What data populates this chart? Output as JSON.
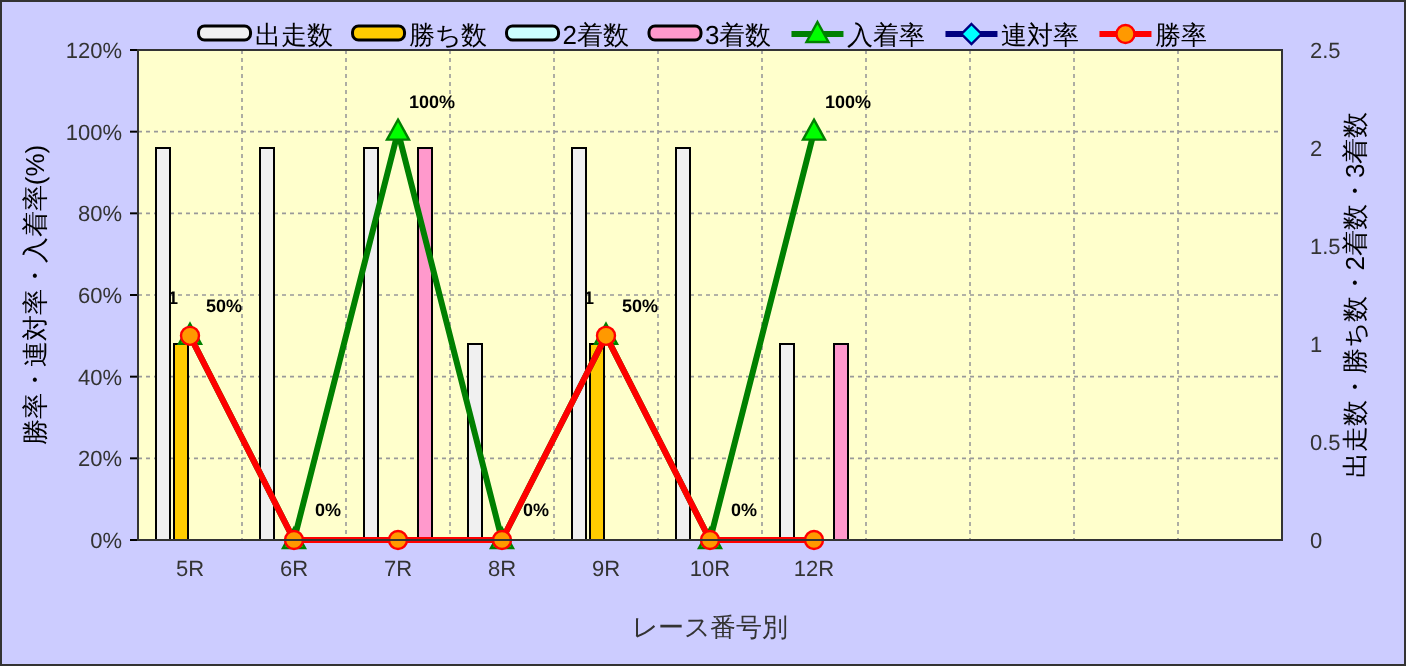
{
  "chart_data": {
    "type": "bar",
    "xlabel": "レース番号別",
    "ylabel": "勝率・連対率・入着率(%)",
    "y2label": "出走数・勝ち数・2着数・3着数",
    "categories": [
      "5R",
      "6R",
      "7R",
      "8R",
      "9R",
      "10R",
      "12R",
      null,
      null,
      null,
      null
    ],
    "series": [
      {
        "name": "出走数",
        "axis": "y2",
        "color": "#f0f0f0",
        "values": [
          2,
          2,
          2,
          1,
          2,
          2,
          1,
          null,
          null,
          null,
          null
        ]
      },
      {
        "name": "勝ち数",
        "axis": "y2",
        "color": "#ffcc00",
        "values": [
          1,
          0,
          0,
          0,
          1,
          0,
          0,
          null,
          null,
          null,
          null
        ],
        "value_labels": [
          "1",
          null,
          null,
          null,
          "1",
          null,
          null,
          null,
          null,
          null,
          null
        ]
      },
      {
        "name": "2着数",
        "axis": "y2",
        "color": "#ccffff",
        "values": [
          0,
          0,
          0,
          0,
          0,
          0,
          0,
          null,
          null,
          null,
          null
        ]
      },
      {
        "name": "3着数",
        "axis": "y2",
        "color": "#ff99cc",
        "values": [
          0,
          0,
          2,
          0,
          0,
          0,
          1,
          null,
          null,
          null,
          null
        ]
      },
      {
        "name": "入着率",
        "type": "line",
        "color": "#008000",
        "marker": "triangle",
        "values": [
          50,
          0,
          100,
          0,
          50,
          0,
          100,
          null,
          null,
          null,
          null
        ],
        "value_labels": [
          "50%",
          "0%",
          "100%",
          "0%",
          "50%",
          "0%",
          "100%",
          null,
          null,
          null,
          null
        ]
      },
      {
        "name": "連対率",
        "type": "line",
        "color": "#000080",
        "marker": "diamond",
        "values": [
          null,
          null,
          null,
          null,
          null,
          null,
          null,
          null,
          null,
          null,
          null
        ]
      },
      {
        "name": "勝率",
        "type": "line",
        "color": "#ff0000",
        "marker": "circle",
        "values": [
          50,
          0,
          0,
          0,
          50,
          0,
          0,
          null,
          null,
          null,
          null
        ]
      }
    ],
    "ylim": [
      0,
      120
    ],
    "yticks": [
      {
        "value": 0,
        "label": "0%"
      },
      {
        "value": 20,
        "label": "20%"
      },
      {
        "value": 40,
        "label": "40%"
      },
      {
        "value": 60,
        "label": "60%"
      },
      {
        "value": 80,
        "label": "80%"
      },
      {
        "value": 100,
        "label": "100%"
      },
      {
        "value": 120,
        "label": "120%"
      }
    ],
    "y2lim": [
      0,
      2.5
    ],
    "y2ticks": [
      0,
      0.5,
      1,
      1.5,
      2,
      2.5
    ],
    "grid": true,
    "legend": "top"
  }
}
